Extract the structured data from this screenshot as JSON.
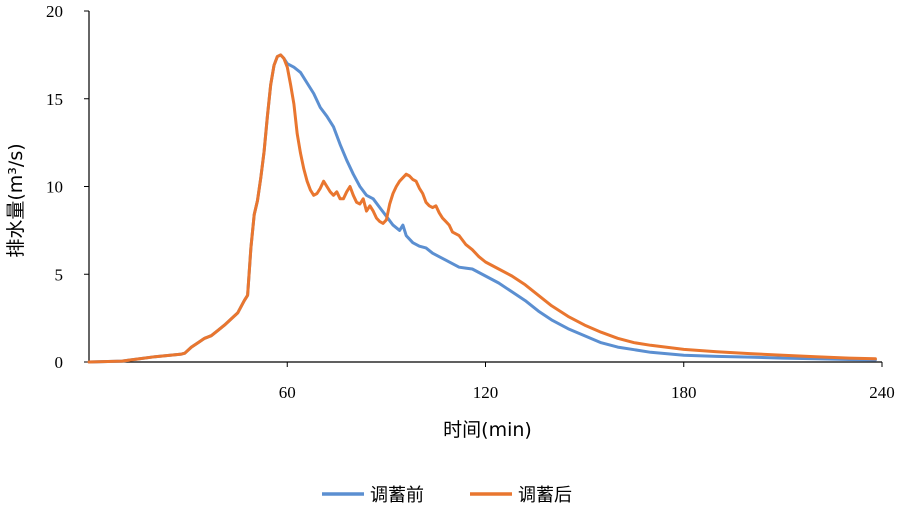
{
  "chart_data": {
    "type": "line",
    "xlabel": "时间(min)",
    "ylabel": "排水量(m³/s)",
    "xlim": [
      0,
      240
    ],
    "ylim": [
      0,
      20
    ],
    "xticks": [
      60,
      120,
      180,
      240
    ],
    "yticks": [
      0,
      5,
      10,
      15,
      20
    ],
    "grid": false,
    "legend_position": "bottom",
    "series": [
      {
        "name": "调蓄前",
        "color": "#5B8FD1",
        "x": [
          0,
          10,
          20,
          28,
          29,
          31,
          33,
          35,
          37,
          39,
          41,
          43,
          45,
          47,
          48,
          49,
          50,
          51,
          52,
          53,
          54,
          55,
          56,
          57,
          58,
          59,
          60,
          62,
          64,
          66,
          68,
          70,
          72,
          74,
          76,
          78,
          80,
          82,
          84,
          86,
          88,
          90,
          92,
          94,
          95,
          96,
          98,
          100,
          102,
          104,
          106,
          108,
          110,
          112,
          114,
          116,
          118,
          120,
          124,
          128,
          132,
          136,
          140,
          145,
          150,
          155,
          160,
          165,
          170,
          180,
          190,
          200,
          210,
          220,
          230,
          238
        ],
        "values": [
          0,
          0.05,
          0.3,
          0.45,
          0.5,
          0.85,
          1.1,
          1.35,
          1.5,
          1.8,
          2.1,
          2.45,
          2.8,
          3.5,
          3.8,
          6.5,
          8.4,
          9.2,
          10.5,
          12.0,
          14.0,
          15.8,
          16.9,
          17.4,
          17.5,
          17.3,
          17.0,
          16.8,
          16.5,
          15.9,
          15.3,
          14.5,
          14.0,
          13.4,
          12.4,
          11.5,
          10.7,
          10.0,
          9.5,
          9.3,
          8.8,
          8.3,
          7.8,
          7.5,
          7.8,
          7.2,
          6.8,
          6.6,
          6.5,
          6.2,
          6.0,
          5.8,
          5.6,
          5.4,
          5.35,
          5.3,
          5.1,
          4.9,
          4.5,
          4.0,
          3.5,
          2.9,
          2.4,
          1.9,
          1.5,
          1.1,
          0.85,
          0.7,
          0.55,
          0.38,
          0.32,
          0.28,
          0.22,
          0.18,
          0.14,
          0.12
        ]
      },
      {
        "name": "调蓄后",
        "color": "#E9762F",
        "x": [
          0,
          10,
          20,
          28,
          29,
          31,
          33,
          35,
          37,
          39,
          41,
          43,
          45,
          47,
          48,
          49,
          50,
          51,
          52,
          53,
          54,
          55,
          56,
          57,
          58,
          59,
          60,
          61,
          62,
          63,
          64,
          65,
          66,
          67,
          68,
          69,
          70,
          71,
          72,
          73,
          74,
          75,
          76,
          77,
          78,
          79,
          80,
          81,
          82,
          83,
          84,
          85,
          86,
          87,
          88,
          89,
          90,
          91,
          92,
          93,
          94,
          95,
          96,
          97,
          98,
          99,
          100,
          101,
          102,
          103,
          104,
          105,
          106,
          107,
          108,
          109,
          110,
          112,
          114,
          116,
          118,
          120,
          124,
          128,
          132,
          136,
          140,
          145,
          150,
          155,
          160,
          165,
          170,
          180,
          190,
          200,
          210,
          220,
          230,
          238
        ],
        "values": [
          0,
          0.05,
          0.3,
          0.45,
          0.5,
          0.85,
          1.1,
          1.35,
          1.5,
          1.8,
          2.1,
          2.45,
          2.8,
          3.5,
          3.8,
          6.5,
          8.4,
          9.2,
          10.5,
          12.0,
          14.0,
          15.8,
          16.9,
          17.4,
          17.5,
          17.3,
          16.8,
          15.8,
          14.7,
          13.0,
          11.9,
          11.0,
          10.3,
          9.8,
          9.5,
          9.6,
          9.9,
          10.3,
          10.0,
          9.7,
          9.5,
          9.7,
          9.3,
          9.3,
          9.7,
          10.0,
          9.5,
          9.1,
          9.0,
          9.3,
          8.6,
          8.9,
          8.6,
          8.2,
          8.0,
          7.9,
          8.1,
          9.0,
          9.6,
          10.0,
          10.3,
          10.5,
          10.7,
          10.6,
          10.4,
          10.3,
          9.9,
          9.6,
          9.1,
          8.9,
          8.8,
          8.9,
          8.5,
          8.2,
          8.0,
          7.8,
          7.4,
          7.2,
          6.7,
          6.4,
          6.0,
          5.7,
          5.3,
          4.9,
          4.4,
          3.8,
          3.2,
          2.6,
          2.1,
          1.7,
          1.35,
          1.1,
          0.95,
          0.72,
          0.58,
          0.48,
          0.38,
          0.3,
          0.22,
          0.18
        ]
      }
    ]
  }
}
